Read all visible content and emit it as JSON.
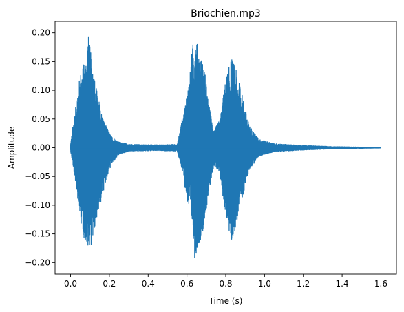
{
  "chart_data": {
    "type": "line",
    "title": "Briochien.mp3",
    "xlabel": "Time (s)",
    "ylabel": "Amplitude",
    "xlim": [
      -0.08,
      1.68
    ],
    "ylim": [
      -0.22,
      0.22
    ],
    "x_ticks": [
      0.0,
      0.2,
      0.4,
      0.6,
      0.8,
      1.0,
      1.2,
      1.4,
      1.6
    ],
    "x_tick_labels": [
      "0.0",
      "0.2",
      "0.4",
      "0.6",
      "0.8",
      "1.0",
      "1.2",
      "1.4",
      "1.6"
    ],
    "y_ticks": [
      -0.2,
      -0.15,
      -0.1,
      -0.05,
      0.0,
      0.05,
      0.1,
      0.15,
      0.2
    ],
    "y_tick_labels": [
      "−0.20",
      "−0.15",
      "−0.10",
      "−0.05",
      "0.00",
      "0.05",
      "0.10",
      "0.15",
      "0.20"
    ],
    "grid": false,
    "series": [
      {
        "color": "#1f77b4",
        "x_range": [
          0.0,
          1.6
        ],
        "envelope": [
          {
            "t": 0.0,
            "max": 0.007,
            "min": -0.006
          },
          {
            "t": 0.03,
            "max": 0.085,
            "min": -0.07
          },
          {
            "t": 0.05,
            "max": 0.13,
            "min": -0.125
          },
          {
            "t": 0.08,
            "max": 0.16,
            "min": -0.175
          },
          {
            "t": 0.09,
            "max": 0.203,
            "min": -0.17
          },
          {
            "t": 0.11,
            "max": 0.15,
            "min": -0.17
          },
          {
            "t": 0.13,
            "max": 0.11,
            "min": -0.13
          },
          {
            "t": 0.16,
            "max": 0.06,
            "min": -0.09
          },
          {
            "t": 0.18,
            "max": 0.04,
            "min": -0.06
          },
          {
            "t": 0.21,
            "max": 0.02,
            "min": -0.03
          },
          {
            "t": 0.25,
            "max": 0.01,
            "min": -0.012
          },
          {
            "t": 0.3,
            "max": 0.006,
            "min": -0.006
          },
          {
            "t": 0.45,
            "max": 0.005,
            "min": -0.005
          },
          {
            "t": 0.55,
            "max": 0.006,
            "min": -0.006
          },
          {
            "t": 0.575,
            "max": 0.05,
            "min": -0.04
          },
          {
            "t": 0.6,
            "max": 0.09,
            "min": -0.09
          },
          {
            "t": 0.63,
            "max": 0.18,
            "min": -0.14
          },
          {
            "t": 0.64,
            "max": 0.203,
            "min": -0.193
          },
          {
            "t": 0.66,
            "max": 0.17,
            "min": -0.17
          },
          {
            "t": 0.69,
            "max": 0.14,
            "min": -0.14
          },
          {
            "t": 0.71,
            "max": 0.08,
            "min": -0.08
          },
          {
            "t": 0.74,
            "max": 0.03,
            "min": -0.03
          },
          {
            "t": 0.77,
            "max": 0.05,
            "min": -0.05
          },
          {
            "t": 0.8,
            "max": 0.12,
            "min": -0.12
          },
          {
            "t": 0.83,
            "max": 0.157,
            "min": -0.168
          },
          {
            "t": 0.85,
            "max": 0.14,
            "min": -0.14
          },
          {
            "t": 0.88,
            "max": 0.1,
            "min": -0.095
          },
          {
            "t": 0.92,
            "max": 0.04,
            "min": -0.04
          },
          {
            "t": 0.97,
            "max": 0.015,
            "min": -0.015
          },
          {
            "t": 1.05,
            "max": 0.007,
            "min": -0.007
          },
          {
            "t": 1.2,
            "max": 0.004,
            "min": -0.004
          },
          {
            "t": 1.35,
            "max": 0.002,
            "min": -0.002
          },
          {
            "t": 1.6,
            "max": 0.0005,
            "min": -0.0005
          }
        ]
      }
    ]
  }
}
